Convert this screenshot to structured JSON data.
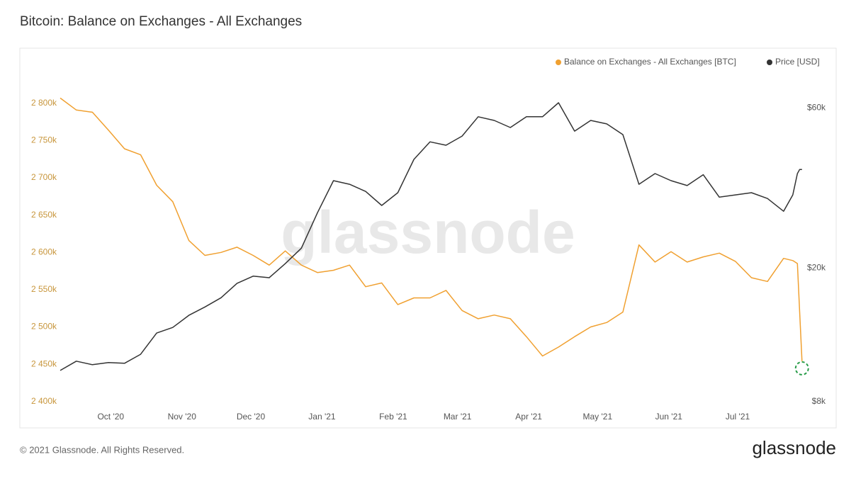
{
  "title": "Bitcoin: Balance on Exchanges - All Exchanges",
  "footer": {
    "copyright": "© 2021 Glassnode. All Rights Reserved.",
    "logo": "glassnode"
  },
  "chart_data": {
    "type": "line",
    "watermark": "glassnode",
    "legend": "top-right",
    "grid": false,
    "x": [
      "2020-09-09",
      "2020-09-16",
      "2020-09-23",
      "2020-09-30",
      "2020-10-07",
      "2020-10-14",
      "2020-10-21",
      "2020-10-28",
      "2020-11-04",
      "2020-11-11",
      "2020-11-18",
      "2020-11-25",
      "2020-12-02",
      "2020-12-09",
      "2020-12-16",
      "2020-12-23",
      "2020-12-30",
      "2021-01-06",
      "2021-01-13",
      "2021-01-20",
      "2021-01-27",
      "2021-02-03",
      "2021-02-10",
      "2021-02-17",
      "2021-02-24",
      "2021-03-03",
      "2021-03-10",
      "2021-03-17",
      "2021-03-24",
      "2021-03-31",
      "2021-04-07",
      "2021-04-14",
      "2021-04-21",
      "2021-04-28",
      "2021-05-05",
      "2021-05-12",
      "2021-05-19",
      "2021-05-26",
      "2021-06-02",
      "2021-06-09",
      "2021-06-16",
      "2021-06-23",
      "2021-06-30",
      "2021-07-07",
      "2021-07-14",
      "2021-07-21",
      "2021-07-25",
      "2021-07-27",
      "2021-07-28",
      "2021-07-29"
    ],
    "xlim": [
      "2020-09-09",
      "2021-07-30"
    ],
    "xticks": [
      {
        "value": "2020-10-01",
        "label": "Oct '20"
      },
      {
        "value": "2020-11-01",
        "label": "Nov '20"
      },
      {
        "value": "2020-12-01",
        "label": "Dec '20"
      },
      {
        "value": "2021-01-01",
        "label": "Jan '21"
      },
      {
        "value": "2021-02-01",
        "label": "Feb '21"
      },
      {
        "value": "2021-03-01",
        "label": "Mar '21"
      },
      {
        "value": "2021-04-01",
        "label": "Apr '21"
      },
      {
        "value": "2021-05-01",
        "label": "May '21"
      },
      {
        "value": "2021-06-01",
        "label": "Jun '21"
      },
      {
        "value": "2021-07-01",
        "label": "Jul '21"
      }
    ],
    "ylim": [
      2395000,
      2815000
    ],
    "yticks": [
      {
        "value": 2400000,
        "label": "2 400k"
      },
      {
        "value": 2450000,
        "label": "2 450k"
      },
      {
        "value": 2500000,
        "label": "2 500k"
      },
      {
        "value": 2550000,
        "label": "2 550k"
      },
      {
        "value": 2600000,
        "label": "2 600k"
      },
      {
        "value": 2650000,
        "label": "2 650k"
      },
      {
        "value": 2700000,
        "label": "2 700k"
      },
      {
        "value": 2750000,
        "label": "2 750k"
      },
      {
        "value": 2800000,
        "label": "2 800k"
      }
    ],
    "y2lim": [
      7800,
      66800
    ],
    "y2log": true,
    "y2ticks": [
      {
        "value": 8000,
        "label": "$8k"
      },
      {
        "value": 20000,
        "label": "$20k"
      },
      {
        "value": 60000,
        "label": "$60k"
      }
    ],
    "series": [
      {
        "name": "Balance on Exchanges - All Exchanges [BTC]",
        "color": "#f0a030",
        "values": [
          2807000,
          2791000,
          2788000,
          2764000,
          2739000,
          2731000,
          2690000,
          2668000,
          2616000,
          2596000,
          2600000,
          2607000,
          2596000,
          2583000,
          2602000,
          2583000,
          2573000,
          2576000,
          2583000,
          2554000,
          2559000,
          2530000,
          2539000,
          2539000,
          2549000,
          2522000,
          2511000,
          2516000,
          2511000,
          2487000,
          2461000,
          2473000,
          2487000,
          2500000,
          2506000,
          2520000,
          2610000,
          2587000,
          2601000,
          2587000,
          2594000,
          2599000,
          2588000,
          2566000,
          2561000,
          2592000,
          2589000,
          2585000,
          2520000,
          2454000
        ]
      },
      {
        "name": "Price [USD]",
        "color": "#333333",
        "axis": "y2",
        "values": [
          9900,
          10550,
          10300,
          10450,
          10400,
          11060,
          12800,
          13300,
          14450,
          15300,
          16300,
          18000,
          18900,
          18700,
          20600,
          22900,
          29200,
          36400,
          35500,
          33800,
          30700,
          33500,
          42100,
          47500,
          46400,
          49400,
          56400,
          55000,
          52400,
          56400,
          56400,
          62100,
          51100,
          55000,
          53700,
          49900,
          35500,
          38200,
          36400,
          35200,
          37900,
          32500,
          33000,
          33500,
          32200,
          29500,
          33000,
          38200,
          39300,
          39300
        ]
      }
    ]
  }
}
